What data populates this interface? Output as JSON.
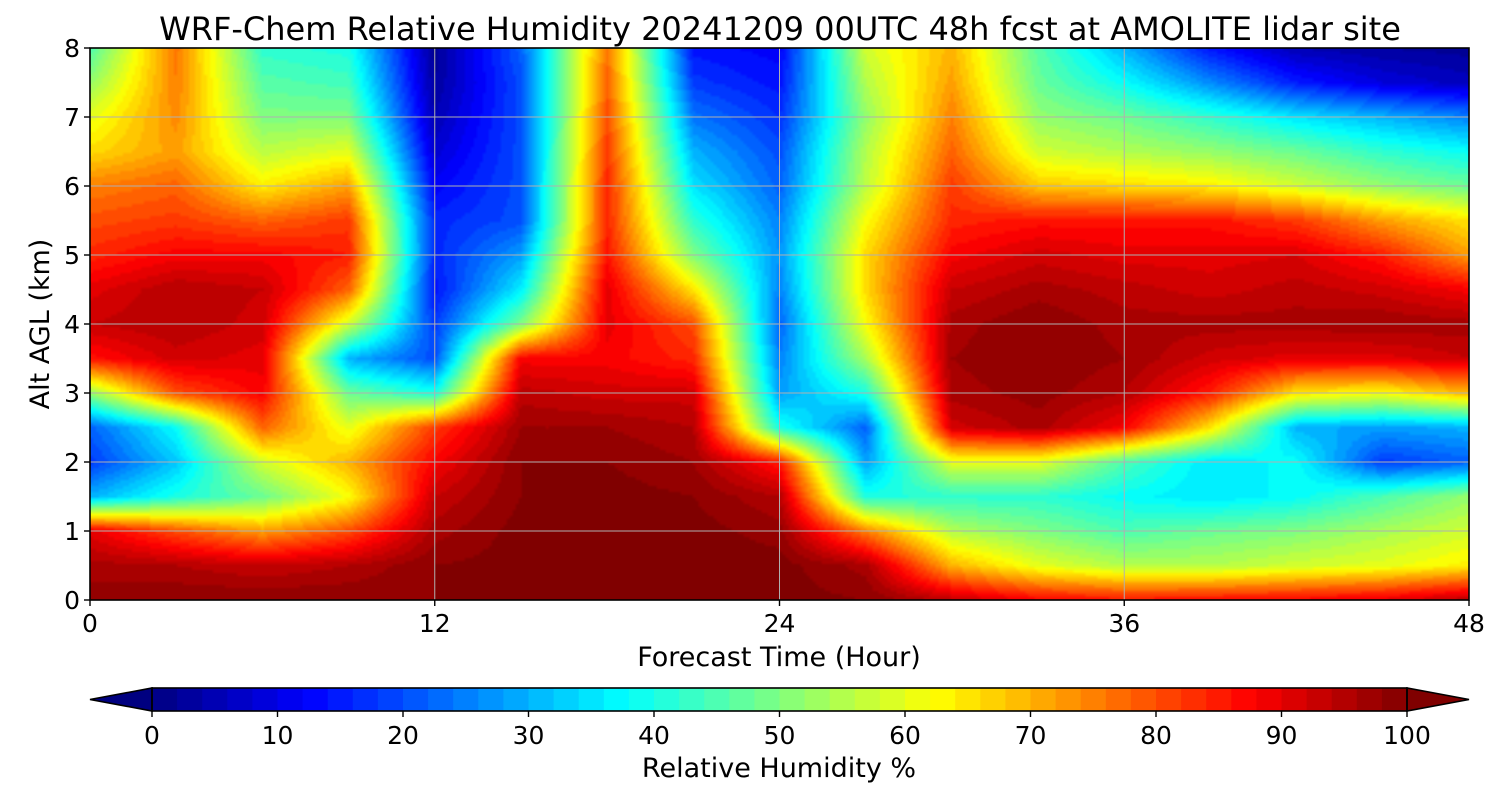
{
  "chart_data": {
    "type": "heatmap",
    "title": "WRF-Chem Relative Humidity 20241209 00UTC 48h fcst at AMOLITE lidar site",
    "xlabel": "Forecast Time (Hour)",
    "ylabel": "Alt AGL (km)",
    "xlim": [
      0,
      48
    ],
    "ylim": [
      0,
      8
    ],
    "xticks": [
      0,
      12,
      24,
      36,
      48
    ],
    "yticks": [
      0,
      1,
      2,
      3,
      4,
      5,
      6,
      7,
      8
    ],
    "grid": true,
    "colormap": "jet",
    "colorbar": {
      "label": "Relative Humidity %",
      "min": 0,
      "max": 100,
      "ticks": [
        0,
        10,
        20,
        30,
        40,
        50,
        60,
        70,
        80,
        90,
        100
      ],
      "extend": "both",
      "orientation": "horizontal"
    },
    "x": [
      0,
      3,
      6,
      9,
      12,
      15,
      18,
      21,
      24,
      27,
      30,
      33,
      36,
      39,
      42,
      45,
      48
    ],
    "y": [
      0,
      0.5,
      1,
      1.5,
      2,
      2.5,
      3,
      3.5,
      4,
      4.5,
      5,
      5.5,
      6,
      6.5,
      7,
      7.5,
      8
    ],
    "z": [
      [
        98,
        99,
        99,
        99,
        99,
        100,
        100,
        100,
        100,
        99,
        94,
        88,
        86,
        87,
        88,
        90,
        95
      ],
      [
        96,
        95,
        93,
        95,
        99,
        100,
        100,
        100,
        100,
        96,
        70,
        60,
        55,
        55,
        58,
        60,
        64
      ],
      [
        90,
        80,
        72,
        80,
        96,
        100,
        100,
        100,
        98,
        75,
        55,
        50,
        45,
        48,
        50,
        54,
        58
      ],
      [
        30,
        40,
        48,
        62,
        93,
        99,
        100,
        99,
        95,
        40,
        42,
        42,
        38,
        35,
        38,
        45,
        52
      ],
      [
        18,
        32,
        58,
        70,
        88,
        99,
        99,
        97,
        85,
        28,
        60,
        60,
        45,
        35,
        38,
        18,
        22
      ],
      [
        22,
        38,
        78,
        60,
        82,
        97,
        97,
        95,
        40,
        22,
        92,
        96,
        88,
        65,
        30,
        28,
        30
      ],
      [
        52,
        80,
        88,
        48,
        40,
        94,
        92,
        92,
        28,
        40,
        96,
        98,
        95,
        85,
        65,
        62,
        70
      ],
      [
        86,
        92,
        90,
        30,
        20,
        88,
        88,
        84,
        25,
        54,
        97,
        99,
        97,
        92,
        90,
        90,
        93
      ],
      [
        93,
        95,
        92,
        58,
        18,
        50,
        90,
        80,
        22,
        62,
        96,
        99,
        96,
        96,
        96,
        97,
        96
      ],
      [
        90,
        95,
        93,
        78,
        14,
        36,
        90,
        65,
        25,
        66,
        93,
        96,
        94,
        92,
        94,
        92,
        88
      ],
      [
        84,
        88,
        88,
        85,
        16,
        28,
        86,
        50,
        27,
        66,
        88,
        92,
        90,
        90,
        91,
        85,
        72
      ],
      [
        80,
        82,
        78,
        82,
        16,
        20,
        84,
        42,
        25,
        62,
        84,
        86,
        86,
        86,
        82,
        72,
        65
      ],
      [
        75,
        78,
        64,
        72,
        12,
        20,
        84,
        35,
        22,
        56,
        82,
        68,
        66,
        64,
        58,
        52,
        48
      ],
      [
        66,
        72,
        56,
        60,
        8,
        20,
        82,
        30,
        20,
        55,
        78,
        58,
        55,
        52,
        48,
        42,
        38
      ],
      [
        60,
        74,
        50,
        50,
        5,
        20,
        80,
        24,
        17,
        52,
        75,
        52,
        48,
        42,
        35,
        30,
        25
      ],
      [
        52,
        75,
        46,
        44,
        3,
        20,
        78,
        18,
        14,
        55,
        72,
        48,
        38,
        26,
        15,
        9,
        6
      ],
      [
        45,
        76,
        42,
        40,
        2,
        22,
        76,
        14,
        12,
        58,
        70,
        46,
        30,
        14,
        5,
        3,
        2
      ]
    ]
  }
}
